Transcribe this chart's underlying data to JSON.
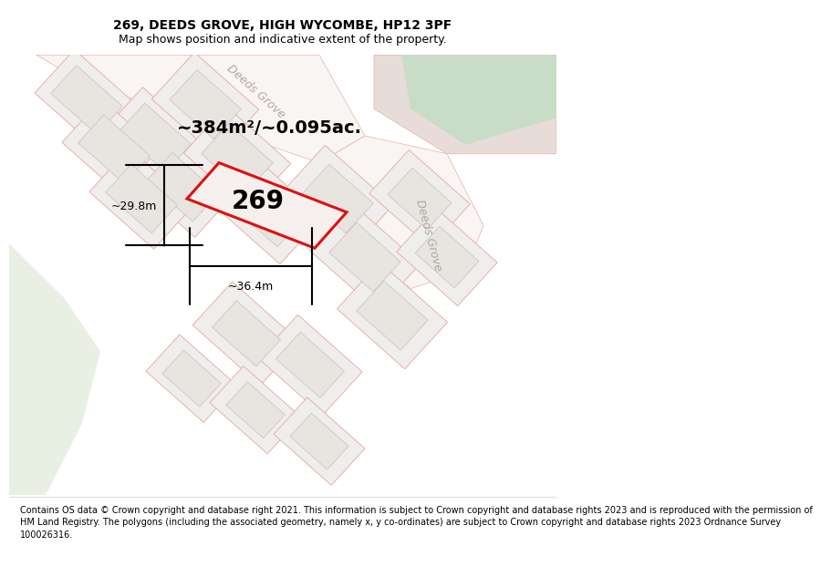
{
  "title": "269, DEEDS GROVE, HIGH WYCOMBE, HP12 3PF",
  "subtitle": "Map shows position and indicative extent of the property.",
  "area_text": "~384m²/~0.095ac.",
  "width_text": "~36.4m",
  "height_text": "~29.8m",
  "property_number": "269",
  "footer": "Contains OS data © Crown copyright and database right 2021. This information is subject to Crown copyright and database rights 2023 and is reproduced with the permission of\nHM Land Registry. The polygons (including the associated geometry, namely x, y co-ordinates) are subject to Crown copyright and database rights 2023 Ordnance Survey\n100026316.",
  "bg_color": "#f5f0ed",
  "parcel_fill": "#f0eeec",
  "parcel_edge": "#e8b0a8",
  "building_fill": "#e8e4e0",
  "building_edge": "#c8c0bc",
  "road_fill": "#ffffff",
  "road_edge": "#e8b0a8",
  "green_fill": "#d8e8d4",
  "green2_fill": "#e8dcd4",
  "property_fill": "#f5f0ed",
  "property_stroke": "#dd1111",
  "title_fontsize": 10,
  "subtitle_fontsize": 9,
  "footer_fontsize": 7,
  "road_label_color": "#aaaaaa",
  "meas_fontsize": 9
}
